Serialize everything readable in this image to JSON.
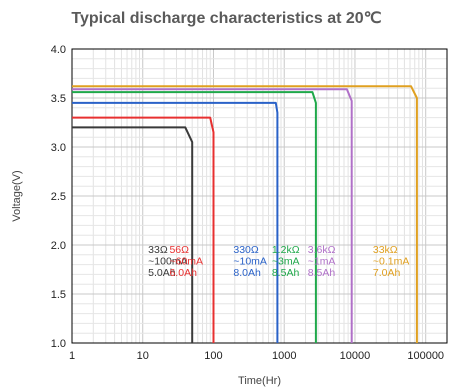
{
  "chart_data": {
    "type": "line",
    "title": "Typical discharge characteristics at 20℃",
    "xlabel": "Time(Hr)",
    "ylabel": "Voltage(V)",
    "xscale": "log",
    "xlim": [
      1,
      200000
    ],
    "ylim": [
      1.0,
      4.0
    ],
    "xticks": [
      1,
      10,
      100,
      1000,
      10000,
      100000
    ],
    "xtick_labels": [
      "1",
      "10",
      "100",
      "1000",
      "10000",
      "100000"
    ],
    "yticks": [
      1.0,
      1.5,
      2.0,
      2.5,
      3.0,
      3.5,
      4.0
    ],
    "ytick_labels": [
      "1.0",
      "1.5",
      "2.0",
      "2.5",
      "3.0",
      "3.5",
      "4.0"
    ],
    "grid": true,
    "series": [
      {
        "color": "#3a3a3a",
        "load": "33Ω",
        "current": "~100mA",
        "capacity": "5.0Ah",
        "x": [
          1,
          40,
          50,
          50
        ],
        "y": [
          3.2,
          3.2,
          3.05,
          1.0
        ]
      },
      {
        "color": "#e83030",
        "load": "56Ω",
        "current": "~60mA",
        "capacity": "6.0Ah",
        "x": [
          1,
          90,
          100,
          100
        ],
        "y": [
          3.3,
          3.3,
          3.15,
          1.0
        ]
      },
      {
        "color": "#2a62c8",
        "load": "330Ω",
        "current": "~10mA",
        "capacity": "8.0Ah",
        "x": [
          1,
          760,
          800,
          800
        ],
        "y": [
          3.45,
          3.45,
          3.35,
          1.0
        ]
      },
      {
        "color": "#1fa84a",
        "load": "1.2kΩ",
        "current": "~3mA",
        "capacity": "8.5Ah",
        "x": [
          1,
          2500,
          2800,
          2800
        ],
        "y": [
          3.56,
          3.56,
          3.45,
          1.0
        ]
      },
      {
        "color": "#b070c8",
        "load": "3.6kΩ",
        "current": "~1mA",
        "capacity": "8.5Ah",
        "x": [
          1,
          7700,
          9000,
          9000
        ],
        "y": [
          3.59,
          3.59,
          3.47,
          1.0
        ]
      },
      {
        "color": "#e0a020",
        "load": "33kΩ",
        "current": "~0.1mA",
        "capacity": "7.0Ah",
        "x": [
          1,
          62000,
          75000,
          75000
        ],
        "y": [
          3.62,
          3.62,
          3.5,
          1.0
        ]
      }
    ]
  }
}
